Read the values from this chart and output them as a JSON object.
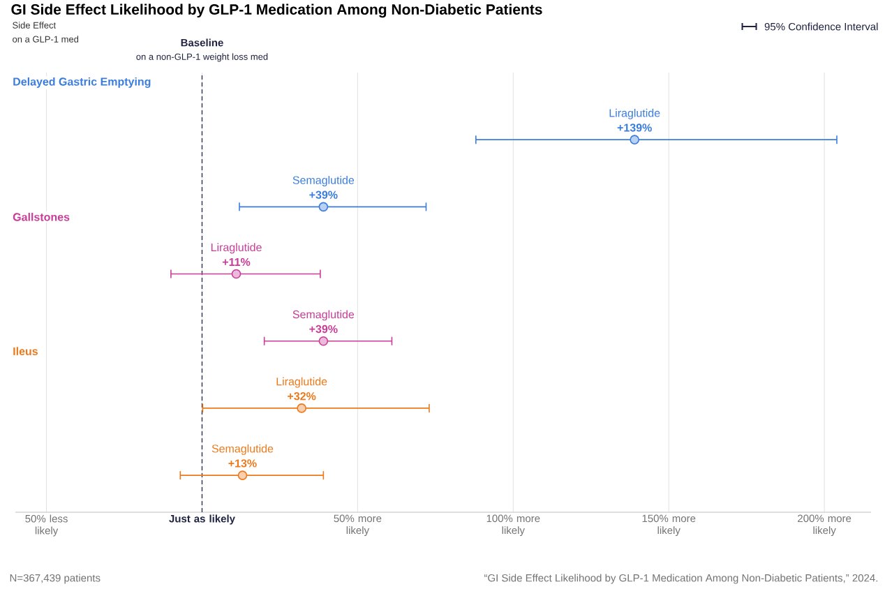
{
  "chart_data": {
    "type": "scatter",
    "orientation": "horizontal",
    "title": "GI Side Effect Likelihood by GLP-1 Medication Among Non-Diabetic Patients",
    "categories": [
      "Liraglutide",
      "Semaglutide",
      "Liraglutide",
      "Semaglutide",
      "Liraglutide",
      "Semaglutide"
    ],
    "xlim": [
      -60,
      215
    ],
    "xticks": [
      {
        "value": -50,
        "label": "50% less likely"
      },
      {
        "value": 0,
        "label": "Just as likely"
      },
      {
        "value": 50,
        "label": "50% more likely"
      },
      {
        "value": 100,
        "label": "100% more likely"
      },
      {
        "value": 150,
        "label": "150% more likely"
      },
      {
        "value": 200,
        "label": "200% more likely"
      }
    ],
    "grid": "x",
    "marker": "circle",
    "series": [
      {
        "name": "Delayed Gastric Emptying",
        "color": "#3b7ddd",
        "values": [
          139,
          39,
          null,
          null,
          null,
          null
        ],
        "errors": [
          [
            88,
            204
          ],
          [
            12,
            72
          ],
          null,
          null,
          null,
          null
        ],
        "value_labels": [
          "+139%",
          "+39%",
          null,
          null,
          null,
          null
        ]
      },
      {
        "name": "Gallstones",
        "color": "#c93d98",
        "values": [
          null,
          null,
          11,
          39,
          null,
          null
        ],
        "errors": [
          null,
          null,
          [
            -10,
            38
          ],
          [
            20,
            61
          ],
          null,
          null
        ],
        "value_labels": [
          null,
          null,
          "+11%",
          "+39%",
          null,
          null
        ]
      },
      {
        "name": "Ileus",
        "color": "#ec7a1c",
        "values": [
          null,
          null,
          null,
          null,
          32,
          13
        ],
        "errors": [
          null,
          null,
          null,
          null,
          [
            0.2,
            73
          ],
          [
            -7,
            39
          ]
        ],
        "value_labels": [
          null,
          null,
          null,
          null,
          "+32%",
          "+13%"
        ]
      }
    ],
    "ref_lines": [
      {
        "axis": "x",
        "value": 0,
        "label": "Baseline",
        "color": "#1f2240",
        "line_style": "dashed"
      }
    ],
    "annotations": [
      "Side Effect",
      "on a GLP-1 med",
      "on a non-GLP-1 weight loss med",
      "95% Confidence Interval",
      "N=367,439 patients",
      "“GI Side Effect Likelihood by GLP-1 Medication Among Non-Diabetic Patients,” 2024."
    ]
  }
}
